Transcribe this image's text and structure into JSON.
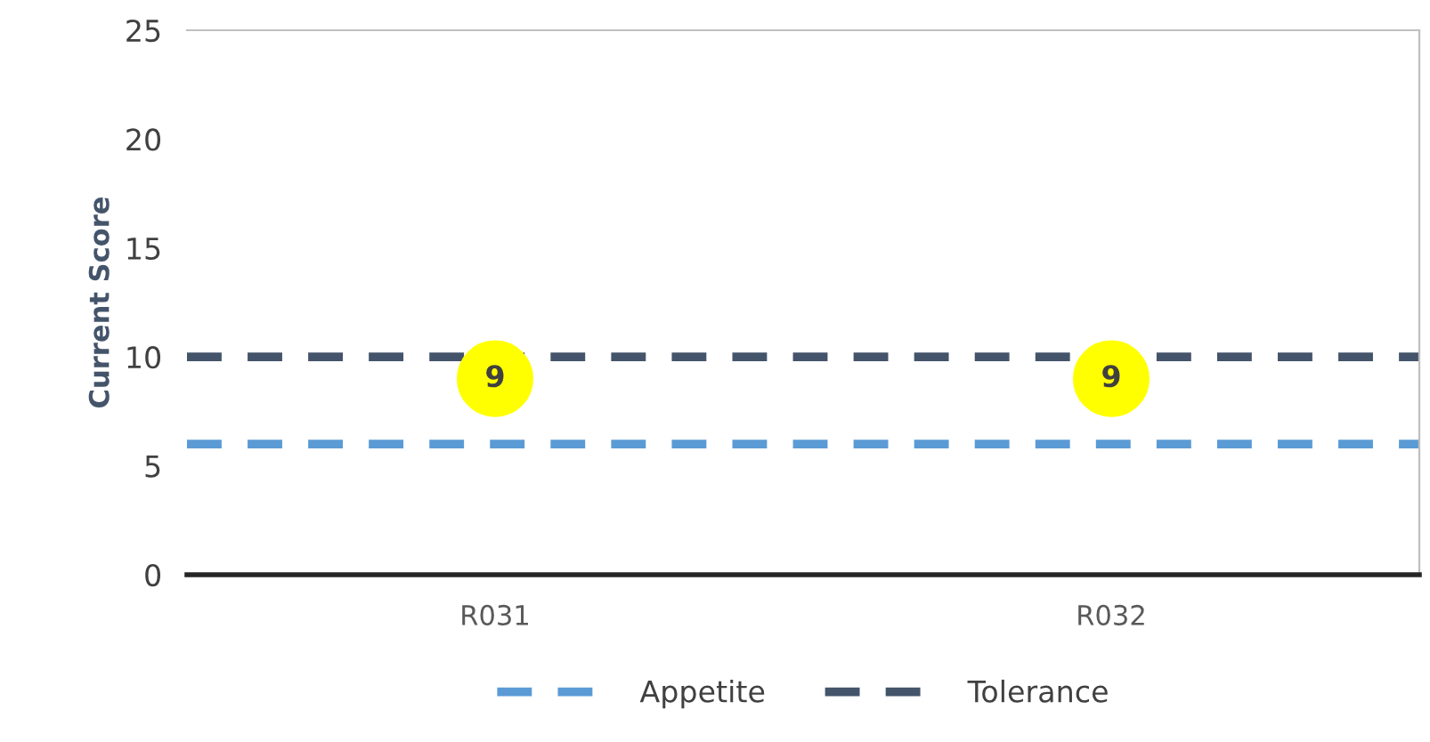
{
  "chart_data": {
    "type": "scatter",
    "ylabel": "Current Score",
    "categories": [
      "R031",
      "R032"
    ],
    "series": [
      {
        "color": "#ffff00",
        "values": [
          9,
          9
        ]
      }
    ],
    "ref_lines": [
      {
        "axis": "y",
        "value": 6,
        "label": "Appetite",
        "color": "#5b9bd5",
        "line_style": "dashed"
      },
      {
        "axis": "y",
        "value": 10,
        "label": "Tolerance",
        "color": "#44546a",
        "line_style": "dashed"
      }
    ],
    "data_labels": true,
    "ylim": [
      0,
      25
    ],
    "yticks": [
      0,
      5,
      10,
      15,
      20,
      25
    ],
    "grid": false,
    "legend": "bottom",
    "marker": "circle"
  }
}
